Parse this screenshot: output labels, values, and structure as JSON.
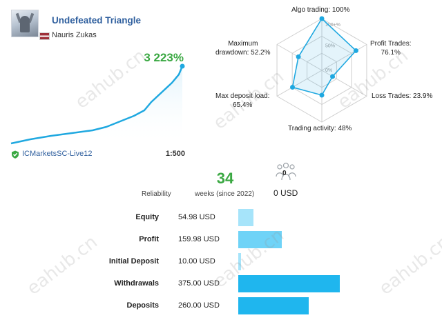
{
  "signal": {
    "title": "Undefeated Triangle",
    "author": "Nauris Zukas",
    "growth": "3 223%",
    "broker": "ICMarketsSC-Live12",
    "leverage": "1:500"
  },
  "radar": {
    "axes": [
      {
        "name": "Algo trading",
        "value": 100,
        "label": "Algo trading: 100%"
      },
      {
        "name": "Profit Trades",
        "value": 76.1,
        "label_line1": "Profit Trades:",
        "label_line2": "76.1%"
      },
      {
        "name": "Loss Trades",
        "value": 23.9,
        "label": "Loss Trades: 23.9%"
      },
      {
        "name": "Trading activity",
        "value": 48,
        "label": "Trading activity: 48%"
      },
      {
        "name": "Max deposit load",
        "value": 65.4,
        "label_line1": "Max deposit load:",
        "label_line2": "65.4%"
      },
      {
        "name": "Maximum drawdown",
        "value": 52.2,
        "label_line1": "Maximum",
        "label_line2": "drawdown: 52.2%"
      }
    ],
    "ring_labels": [
      "100+%",
      "50%",
      "0%"
    ]
  },
  "stats": {
    "reliability_label": "Reliability",
    "weeks": "34",
    "weeks_label": "weeks (since 2022)",
    "subscribers": "0",
    "subscribers_usd": "0 USD"
  },
  "financials": [
    {
      "label": "Equity",
      "value_text": "54.98 USD",
      "amount": 54.98,
      "color": "#a6e4fa"
    },
    {
      "label": "Profit",
      "value_text": "159.98 USD",
      "amount": 159.98,
      "color": "#6fd3f7"
    },
    {
      "label": "Initial Deposit",
      "value_text": "10.00 USD",
      "amount": 10.0,
      "color": "#a6e4fa"
    },
    {
      "label": "Withdrawals",
      "value_text": "375.00 USD",
      "amount": 375.0,
      "color": "#1fb6ee"
    },
    {
      "label": "Deposits",
      "value_text": "260.00 USD",
      "amount": 260.0,
      "color": "#1fb6ee"
    }
  ],
  "watermark": "eahub.cn",
  "colors": {
    "accent_blue": "#2f5f9e",
    "growth_green": "#3aa842",
    "chart_line": "#1fa8e0"
  }
}
